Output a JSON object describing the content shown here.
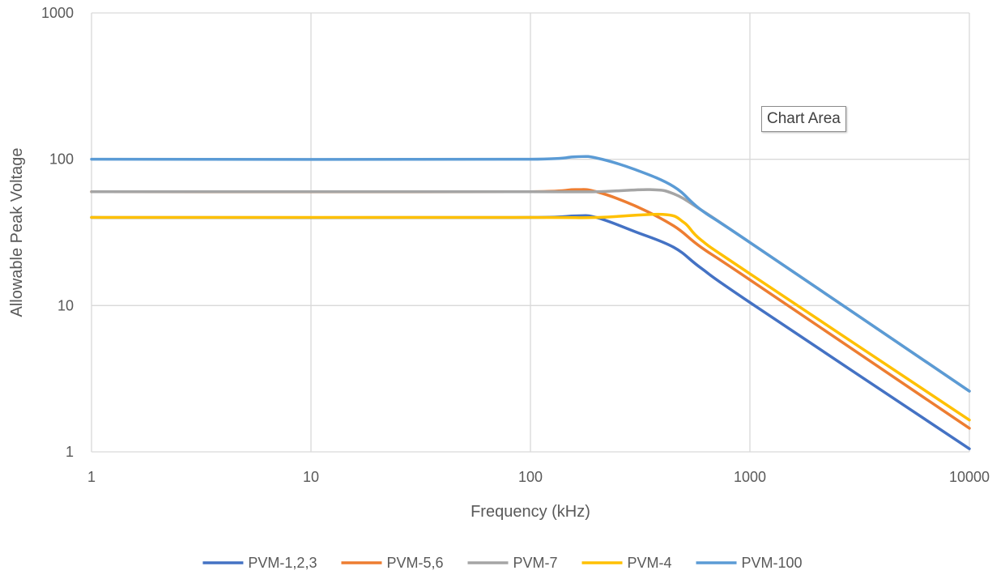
{
  "chart_data": {
    "type": "line",
    "title": "",
    "xlabel": "Frequency (kHz)",
    "ylabel": "Allowable Peak Voltage",
    "xscale": "log",
    "yscale": "log",
    "xlim": [
      1,
      10000
    ],
    "ylim": [
      1,
      1000
    ],
    "x_ticks": [
      "1",
      "10",
      "100",
      "1000",
      "10000"
    ],
    "y_ticks": [
      "1",
      "10",
      "100",
      "1000"
    ],
    "grid": true,
    "legend_position": "bottom",
    "series": [
      {
        "name": "PVM-1,2,3",
        "color": "#4472C4",
        "points": [
          [
            1,
            40
          ],
          [
            100,
            40
          ],
          [
            160,
            41
          ],
          [
            200,
            40
          ],
          [
            300,
            32
          ],
          [
            450,
            25
          ],
          [
            600,
            18
          ],
          [
            1000,
            10.5
          ],
          [
            10000,
            1.05
          ]
        ]
      },
      {
        "name": "PVM-5,6",
        "color": "#ED7D31",
        "points": [
          [
            1,
            60
          ],
          [
            100,
            60
          ],
          [
            160,
            62
          ],
          [
            200,
            60
          ],
          [
            300,
            48
          ],
          [
            450,
            35
          ],
          [
            600,
            25
          ],
          [
            1000,
            15
          ],
          [
            10000,
            1.45
          ]
        ]
      },
      {
        "name": "PVM-7",
        "color": "#A5A5A5",
        "points": [
          [
            1,
            60
          ],
          [
            100,
            60
          ],
          [
            200,
            60
          ],
          [
            350,
            62
          ],
          [
            450,
            58
          ],
          [
            600,
            45
          ],
          [
            1000,
            27
          ],
          [
            10000,
            2.6
          ]
        ]
      },
      {
        "name": "PVM-4",
        "color": "#FFC000",
        "points": [
          [
            1,
            40
          ],
          [
            100,
            40
          ],
          [
            200,
            40
          ],
          [
            400,
            42
          ],
          [
            500,
            37
          ],
          [
            600,
            28
          ],
          [
            1000,
            16.5
          ],
          [
            10000,
            1.65
          ]
        ]
      },
      {
        "name": "PVM-100",
        "color": "#5B9BD5",
        "points": [
          [
            1,
            100
          ],
          [
            100,
            100
          ],
          [
            160,
            104
          ],
          [
            200,
            102
          ],
          [
            300,
            85
          ],
          [
            450,
            65
          ],
          [
            600,
            45
          ],
          [
            1000,
            27
          ],
          [
            10000,
            2.6
          ]
        ]
      }
    ]
  },
  "tooltip": {
    "text": "Chart Area"
  }
}
